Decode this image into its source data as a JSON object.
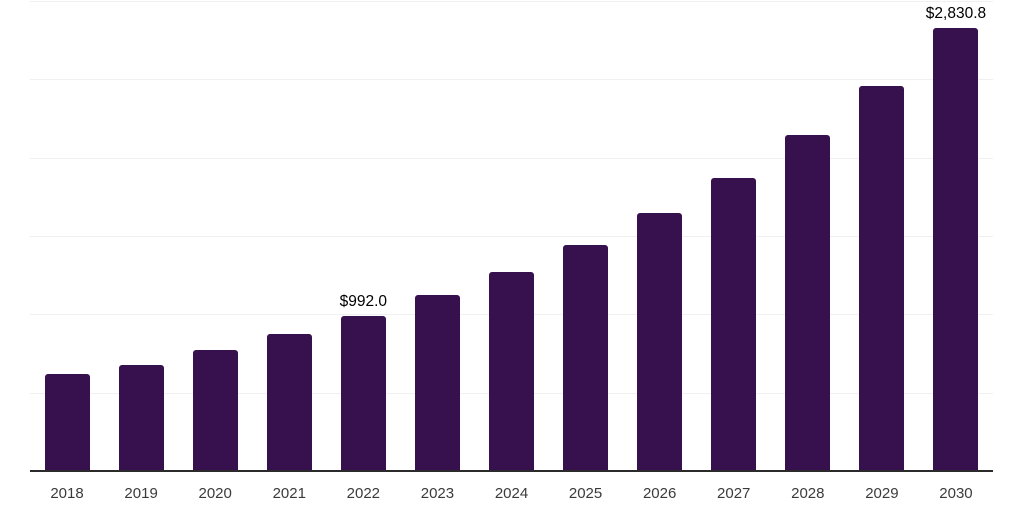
{
  "chart_data": {
    "type": "bar",
    "title": "",
    "xlabel": "",
    "ylabel": "",
    "categories": [
      "2018",
      "2019",
      "2020",
      "2021",
      "2022",
      "2023",
      "2024",
      "2025",
      "2026",
      "2027",
      "2028",
      "2029",
      "2030"
    ],
    "values": [
      622,
      677,
      773,
      874,
      992.0,
      1125,
      1272,
      1445,
      1645,
      1872,
      2144,
      2460,
      2830.8
    ],
    "value_labels": [
      "",
      "",
      "",
      "",
      "$992.0",
      "",
      "",
      "",
      "",
      "",
      "",
      "",
      "$2,830.8"
    ],
    "ylim": [
      0,
      3000
    ],
    "grid_step": 500,
    "grid": "on",
    "legend": "none",
    "y_axis_tick_labels": "none",
    "bar_color": "#36114d",
    "axis_color": "#2b2b2b",
    "gridline_color": "#f0f0f0",
    "tick_label_color": "#3b3b3b",
    "value_label_color": "#000000"
  }
}
